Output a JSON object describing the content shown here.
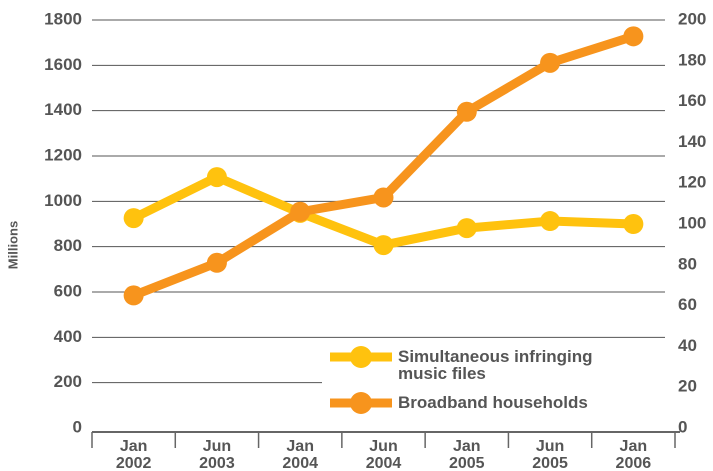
{
  "chart_data": {
    "type": "line",
    "ylabel": "Millions",
    "categories": [
      "Jan\n2002",
      "Jun\n2003",
      "Jan\n2004",
      "Jun\n2004",
      "Jan\n2005",
      "Jun\n2005",
      "Jan\n2006"
    ],
    "series": [
      {
        "name": "Simultaneous infringing\nmusic files",
        "color": "#ffc20e",
        "values": [
          926,
          1107,
          949,
          807,
          882,
          913,
          900
        ]
      },
      {
        "name": "Broadband households",
        "color": "#f7941d",
        "axis": "y2",
        "values": [
          65,
          81,
          106,
          113,
          155,
          179,
          192
        ]
      }
    ],
    "ylim": [
      0,
      1800
    ],
    "yticks": [
      0,
      200,
      400,
      600,
      800,
      1000,
      1200,
      1400,
      1600,
      1800
    ],
    "y2lim": [
      0,
      200
    ],
    "y2ticks": [
      0,
      20,
      40,
      60,
      80,
      100,
      120,
      140,
      160,
      180,
      200
    ],
    "grid": true,
    "legend": "lower right"
  }
}
